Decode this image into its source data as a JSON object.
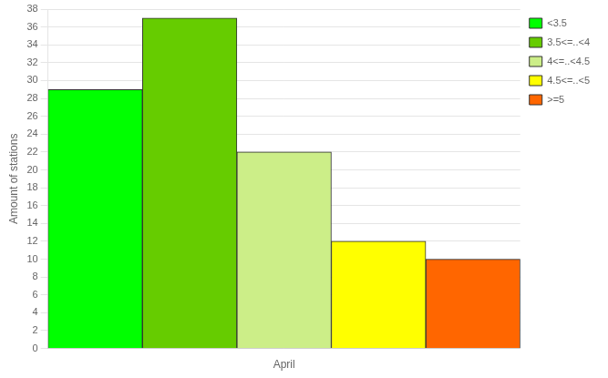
{
  "chart_data": {
    "type": "bar",
    "categories": [
      "April"
    ],
    "series": [
      {
        "name": "<3.5",
        "color": "#00ff00",
        "values": [
          29
        ]
      },
      {
        "name": "3.5<=..<4",
        "color": "#66cc00",
        "values": [
          37
        ]
      },
      {
        "name": "4<=..<4.5",
        "color": "#ccee88",
        "values": [
          22
        ]
      },
      {
        "name": "4.5<=..<5",
        "color": "#ffff00",
        "values": [
          12
        ]
      },
      {
        "name": ">=5",
        "color": "#ff6600",
        "values": [
          10
        ]
      }
    ],
    "ylabel": "Amount of stations",
    "ylim": [
      0,
      38
    ],
    "yticks": [
      0,
      2,
      4,
      6,
      8,
      10,
      12,
      14,
      16,
      18,
      20,
      22,
      24,
      26,
      28,
      30,
      32,
      34,
      36,
      38
    ],
    "grid": true,
    "legend": "upper right"
  }
}
